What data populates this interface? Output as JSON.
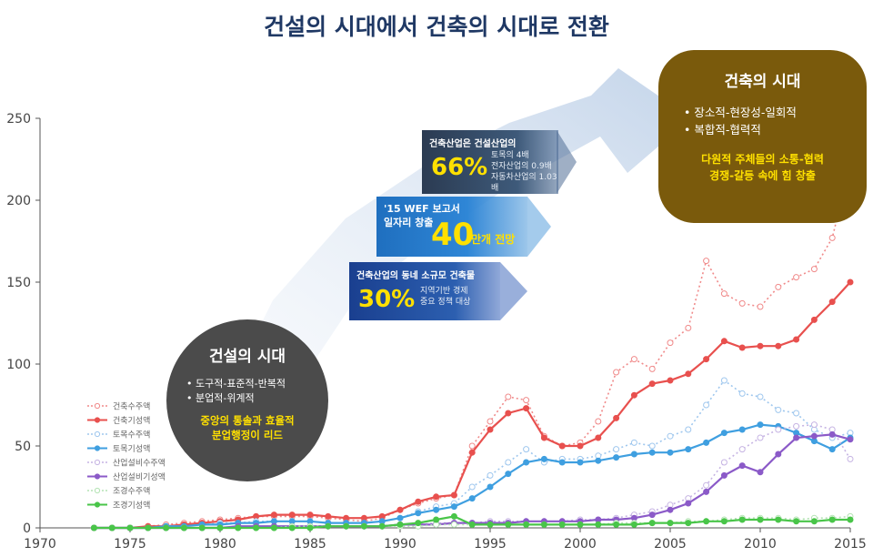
{
  "title": "건설의 시대에서 건축의 시대로 전환",
  "chart_data": {
    "type": "line",
    "xlim": [
      1970,
      2015
    ],
    "ylim": [
      0,
      250
    ],
    "x_ticks": [
      1970,
      1975,
      1980,
      1985,
      1990,
      1995,
      2000,
      2005,
      2010,
      2015
    ],
    "y_ticks": [
      0,
      50,
      100,
      150,
      200,
      250
    ],
    "x": [
      1973,
      1974,
      1975,
      1976,
      1977,
      1978,
      1979,
      1980,
      1981,
      1982,
      1983,
      1984,
      1985,
      1986,
      1987,
      1988,
      1989,
      1990,
      1991,
      1992,
      1993,
      1994,
      1995,
      1996,
      1997,
      1998,
      1999,
      2000,
      2001,
      2002,
      2003,
      2004,
      2005,
      2006,
      2007,
      2008,
      2009,
      2010,
      2011,
      2012,
      2013,
      2014,
      2015
    ],
    "legend_position": "left",
    "series": [
      {
        "name": "건축수주액",
        "color": "#f08a8a",
        "style": "dotted",
        "values": [
          0,
          0,
          0,
          1,
          2,
          3,
          4,
          5,
          6,
          7,
          7,
          7,
          7,
          6,
          5,
          4,
          6,
          11,
          15,
          18,
          20,
          50,
          65,
          80,
          78,
          56,
          50,
          52,
          65,
          95,
          103,
          97,
          113,
          122,
          163,
          143,
          137,
          135,
          147,
          153,
          158,
          177,
          222
        ]
      },
      {
        "name": "건축기성액",
        "color": "#e8504e",
        "style": "solid",
        "values": [
          0,
          0,
          0,
          1,
          1,
          2,
          3,
          4,
          5,
          7,
          8,
          8,
          8,
          7,
          6,
          6,
          7,
          11,
          16,
          19,
          20,
          46,
          60,
          70,
          73,
          55,
          50,
          50,
          55,
          67,
          81,
          88,
          90,
          94,
          103,
          114,
          110,
          111,
          111,
          115,
          127,
          138,
          150
        ]
      },
      {
        "name": "토목수주액",
        "color": "#9fc7ee",
        "style": "dotted",
        "values": [
          0,
          0,
          0,
          0,
          1,
          1,
          2,
          3,
          3,
          4,
          4,
          4,
          4,
          3,
          3,
          3,
          4,
          6,
          10,
          13,
          15,
          25,
          32,
          40,
          48,
          40,
          42,
          42,
          44,
          48,
          52,
          50,
          56,
          60,
          75,
          90,
          82,
          80,
          72,
          70,
          60,
          55,
          58
        ]
      },
      {
        "name": "토목기성액",
        "color": "#3f9fe0",
        "style": "solid",
        "values": [
          0,
          0,
          0,
          0,
          1,
          1,
          2,
          2,
          3,
          3,
          4,
          4,
          4,
          3,
          3,
          3,
          4,
          6,
          9,
          11,
          13,
          18,
          25,
          33,
          40,
          42,
          40,
          40,
          41,
          43,
          45,
          46,
          46,
          48,
          52,
          58,
          60,
          63,
          62,
          58,
          53,
          48,
          55
        ]
      },
      {
        "name": "산업설비수주액",
        "color": "#c6b4e3",
        "style": "dotted",
        "values": [
          0,
          0,
          0,
          0,
          0,
          0,
          0,
          0,
          1,
          1,
          1,
          1,
          1,
          1,
          1,
          1,
          1,
          2,
          2,
          3,
          3,
          3,
          4,
          4,
          4,
          4,
          4,
          5,
          5,
          6,
          8,
          10,
          14,
          18,
          26,
          40,
          48,
          55,
          60,
          62,
          63,
          60,
          42
        ]
      },
      {
        "name": "산업설비기성액",
        "color": "#8b5ac8",
        "style": "solid",
        "values": [
          0,
          0,
          0,
          0,
          0,
          0,
          0,
          0,
          1,
          1,
          1,
          1,
          1,
          1,
          1,
          1,
          1,
          2,
          2,
          2,
          3,
          3,
          3,
          3,
          4,
          4,
          4,
          4,
          5,
          5,
          6,
          8,
          11,
          15,
          22,
          32,
          38,
          34,
          45,
          55,
          56,
          57,
          54
        ]
      },
      {
        "name": "조경수주액",
        "color": "#b3e3b3",
        "style": "dotted",
        "values": [
          0,
          0,
          0,
          0,
          0,
          0,
          0,
          0,
          0,
          0,
          0,
          1,
          1,
          1,
          1,
          1,
          1,
          1,
          1,
          2,
          2,
          2,
          2,
          2,
          2,
          2,
          2,
          2,
          2,
          3,
          3,
          3,
          3,
          4,
          4,
          5,
          6,
          6,
          6,
          5,
          6,
          6,
          7
        ]
      },
      {
        "name": "조경기성액",
        "color": "#49c549",
        "style": "solid",
        "values": [
          0,
          0,
          0,
          0,
          0,
          0,
          0,
          0,
          0,
          0,
          0,
          0,
          0,
          1,
          1,
          1,
          1,
          2,
          3,
          5,
          7,
          2,
          2,
          2,
          2,
          2,
          2,
          2,
          2,
          2,
          2,
          3,
          3,
          3,
          4,
          4,
          5,
          5,
          5,
          4,
          4,
          5,
          5
        ]
      }
    ]
  },
  "callouts": {
    "share": {
      "head": "건축산업은 건설산업의",
      "big": "66%",
      "lines": [
        "토목의 4배",
        "전자산업의 0.9배",
        "자동차산업의 1.03배"
      ]
    },
    "wef": {
      "line1": "'15 WEF 보고서",
      "line2": "일자리 창출",
      "big": "40",
      "unit": "만개 전망"
    },
    "small": {
      "head": "건축산업의 동네 소규모 건축물",
      "big": "30%",
      "lines": [
        "지역기반 경제",
        "중요 정책 대상"
      ]
    }
  },
  "construction_era": {
    "title": "건설의 시대",
    "bullets": [
      "• 도구적-표준적-반복적",
      "• 분업적-위계적"
    ],
    "highlight": [
      "중앙의 통솔과 효율적",
      "분업행정이 리드"
    ]
  },
  "architecture_era": {
    "title": "건축의 시대",
    "bullets": [
      "• 장소적-현장성-일회적",
      "• 복합적-협력적"
    ],
    "highlight": [
      "다원적 주체들의 소통-협력",
      "경쟁-갈등 속에 힘 창출"
    ]
  }
}
